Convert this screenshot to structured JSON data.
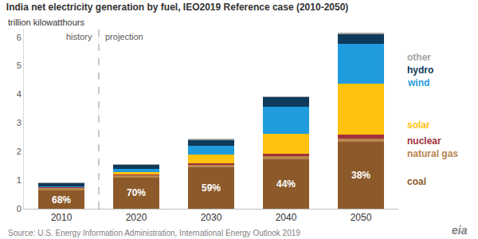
{
  "chart_data": {
    "type": "bar",
    "title": "India net electricity generation by fuel, IEO2019 Reference case (2010-2050)",
    "ylabel": "trillion kilowatthours",
    "categories": [
      "2010",
      "2020",
      "2030",
      "2040",
      "2050"
    ],
    "stacked": true,
    "series": [
      {
        "name": "coal",
        "color": "#8c5a2a",
        "values": [
          0.63,
          1.09,
          1.44,
          1.73,
          2.34
        ]
      },
      {
        "name": "natural gas",
        "color": "#b8864d",
        "values": [
          0.1,
          0.07,
          0.08,
          0.1,
          0.12
        ]
      },
      {
        "name": "nuclear",
        "color": "#a0323c",
        "values": [
          0.03,
          0.05,
          0.07,
          0.1,
          0.12
        ]
      },
      {
        "name": "solar",
        "color": "#ffc20e",
        "values": [
          0.0,
          0.08,
          0.3,
          0.7,
          1.8
        ]
      },
      {
        "name": "wind",
        "color": "#1f9bde",
        "values": [
          0.02,
          0.1,
          0.32,
          0.95,
          1.4
        ]
      },
      {
        "name": "hydro",
        "color": "#0e3a5b",
        "values": [
          0.12,
          0.15,
          0.2,
          0.33,
          0.33
        ]
      },
      {
        "name": "other",
        "color": "#a6a6a6",
        "values": [
          0.02,
          0.02,
          0.03,
          0.03,
          0.05
        ]
      }
    ],
    "annotations": [
      {
        "category": "2010",
        "series": "coal",
        "text": "68%"
      },
      {
        "category": "2020",
        "series": "coal",
        "text": "70%"
      },
      {
        "category": "2030",
        "series": "coal",
        "text": "59%"
      },
      {
        "category": "2040",
        "series": "coal",
        "text": "44%"
      },
      {
        "category": "2050",
        "series": "coal",
        "text": "38%"
      }
    ],
    "periods": [
      {
        "label": "history",
        "categories": [
          "2010"
        ]
      },
      {
        "label": "projection",
        "categories": [
          "2020",
          "2030",
          "2040",
          "2050"
        ]
      }
    ],
    "ylim": [
      0,
      6.3
    ],
    "yticks": [
      0,
      1,
      2,
      3,
      4,
      5,
      6
    ],
    "grid": false,
    "source": "Source: U.S. Energy Information Administration, International Energy Outlook 2019",
    "logo": "eia"
  }
}
